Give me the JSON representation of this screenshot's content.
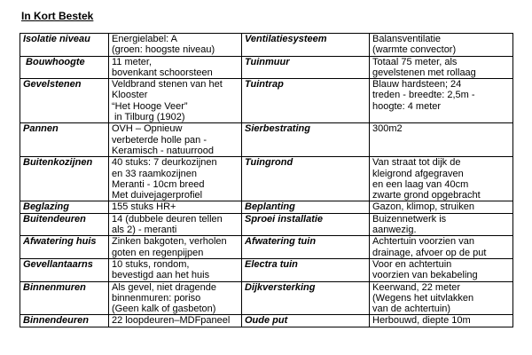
{
  "header": {
    "title": "In Kort Bestek"
  },
  "table": {
    "rows": [
      [
        [
          "Isolatie niveau"
        ],
        [
          "Energielabel: A",
          "(groen: hoogste niveau)"
        ],
        [
          "Ventilatiesysteem"
        ],
        [
          "Balansventilatie",
          "(warmte convector)"
        ]
      ],
      [
        [
          " Bouwhoogte"
        ],
        [
          "11 meter,",
          "bovenkant schoorsteen"
        ],
        [
          "Tuinmuur"
        ],
        [
          "Totaal 75 meter, als",
          "gevelstenen met rollaag"
        ]
      ],
      [
        [
          "Gevelstenen"
        ],
        [
          "Veldbrand stenen van het",
          "Klooster",
          "“Het Hooge Veer”",
          " in Tilburg (1902)"
        ],
        [
          "Tuintrap"
        ],
        [
          "Blauw hardsteen; 24",
          "treden - breedte: 2,5m -",
          "hoogte: 4 meter"
        ]
      ],
      [
        [
          "Pannen"
        ],
        [
          "OVH – Opnieuw",
          "verbeterde holle pan -",
          "Keramisch - natuurrood"
        ],
        [
          "Sierbestrating"
        ],
        [
          "300m2"
        ]
      ],
      [
        [
          "Buitenkozijnen"
        ],
        [
          "40 stuks: 7 deurkozijnen",
          "en 33 raamkozijnen",
          "Meranti - 10cm breed",
          "Met duivejagerprofiel"
        ],
        [
          "Tuingrond"
        ],
        [
          "Van straat tot dijk de",
          "kleigrond afgegraven",
          "en een laag van 40cm",
          "zwarte grond opgebracht"
        ]
      ],
      [
        [
          "Beglazing"
        ],
        [
          "155 stuks HR+"
        ],
        [
          "Beplanting"
        ],
        [
          "Gazon, klimop, struiken"
        ]
      ],
      [
        [
          "Buitendeuren"
        ],
        [
          "14 (dubbele deuren tellen",
          "als 2) - meranti"
        ],
        [
          "Sproei installatie"
        ],
        [
          "Buizennetwerk is",
          "aanwezig."
        ]
      ],
      [
        [
          "Afwatering huis"
        ],
        [
          "Zinken bakgoten, verholen",
          "goten en regenpijpen"
        ],
        [
          "Afwatering tuin"
        ],
        [
          "Achtertuin voorzien van",
          "drainage, afvoer op de put"
        ]
      ],
      [
        [
          "Gevellantaarns"
        ],
        [
          "10 stuks, rondom,",
          "bevestigd aan het huis"
        ],
        [
          "Electra tuin"
        ],
        [
          "Voor en achtertuin",
          "voorzien van bekabeling"
        ]
      ],
      [
        [
          "Binnenmuren"
        ],
        [
          "Als gevel, niet dragende",
          "binnenmuren: poriso",
          "(Geen kalk of gasbeton)"
        ],
        [
          "Dijkversterking"
        ],
        [
          "Keerwand, 22 meter",
          "(Wegens het uitvlakken",
          "van de achtertuin)"
        ]
      ],
      [
        [
          "Binnendeuren"
        ],
        [
          "22 loopdeuren–MDFpaneel"
        ],
        [
          "Oude put"
        ],
        [
          "Herbouwd, diepte 10m"
        ]
      ]
    ]
  }
}
